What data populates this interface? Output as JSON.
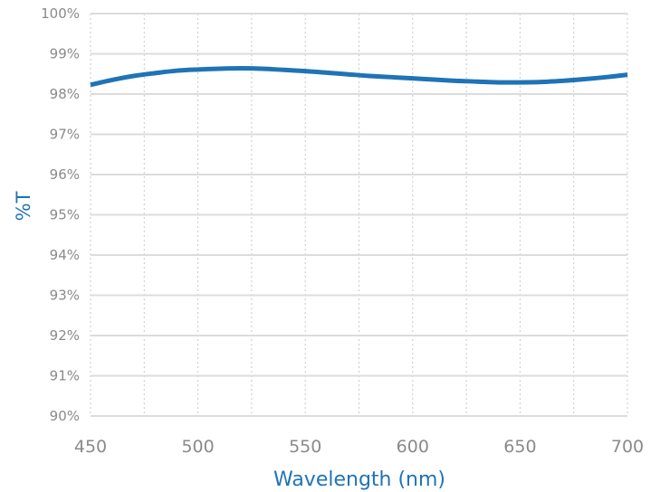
{
  "colors": {
    "series": "#1f73b7",
    "axis_title": "#1f73b7",
    "tick_label": "#8a8a8a",
    "major_grid": "#dcdcdc",
    "minor_grid": "#c9c9c9"
  },
  "chart_data": {
    "type": "line",
    "xlabel": "Wavelength (nm)",
    "ylabel": "%T",
    "xlim": [
      450,
      700
    ],
    "ylim": [
      90,
      100
    ],
    "x_ticks": [
      450,
      500,
      550,
      600,
      650,
      700
    ],
    "x_tick_labels": [
      "450",
      "500",
      "550",
      "600",
      "650",
      "700"
    ],
    "x_minor_ticks": [
      475,
      525,
      575,
      625,
      675
    ],
    "y_ticks": [
      90,
      91,
      92,
      93,
      94,
      95,
      96,
      97,
      98,
      99,
      100
    ],
    "y_tick_labels": [
      "90%",
      "91%",
      "92%",
      "93%",
      "94%",
      "95%",
      "96%",
      "97%",
      "98%",
      "99%",
      "100%"
    ],
    "grid": true,
    "legend": "none",
    "series": [
      {
        "x": [
          450,
          460,
          470,
          480,
          490,
          500,
          510,
          520,
          530,
          540,
          550,
          560,
          570,
          580,
          590,
          600,
          610,
          620,
          630,
          640,
          650,
          660,
          670,
          680,
          690,
          700
        ],
        "values": [
          98.23,
          98.35,
          98.45,
          98.52,
          98.58,
          98.61,
          98.63,
          98.64,
          98.63,
          98.6,
          98.57,
          98.53,
          98.49,
          98.45,
          98.42,
          98.39,
          98.36,
          98.33,
          98.31,
          98.29,
          98.29,
          98.3,
          98.33,
          98.37,
          98.42,
          98.48
        ]
      }
    ]
  }
}
